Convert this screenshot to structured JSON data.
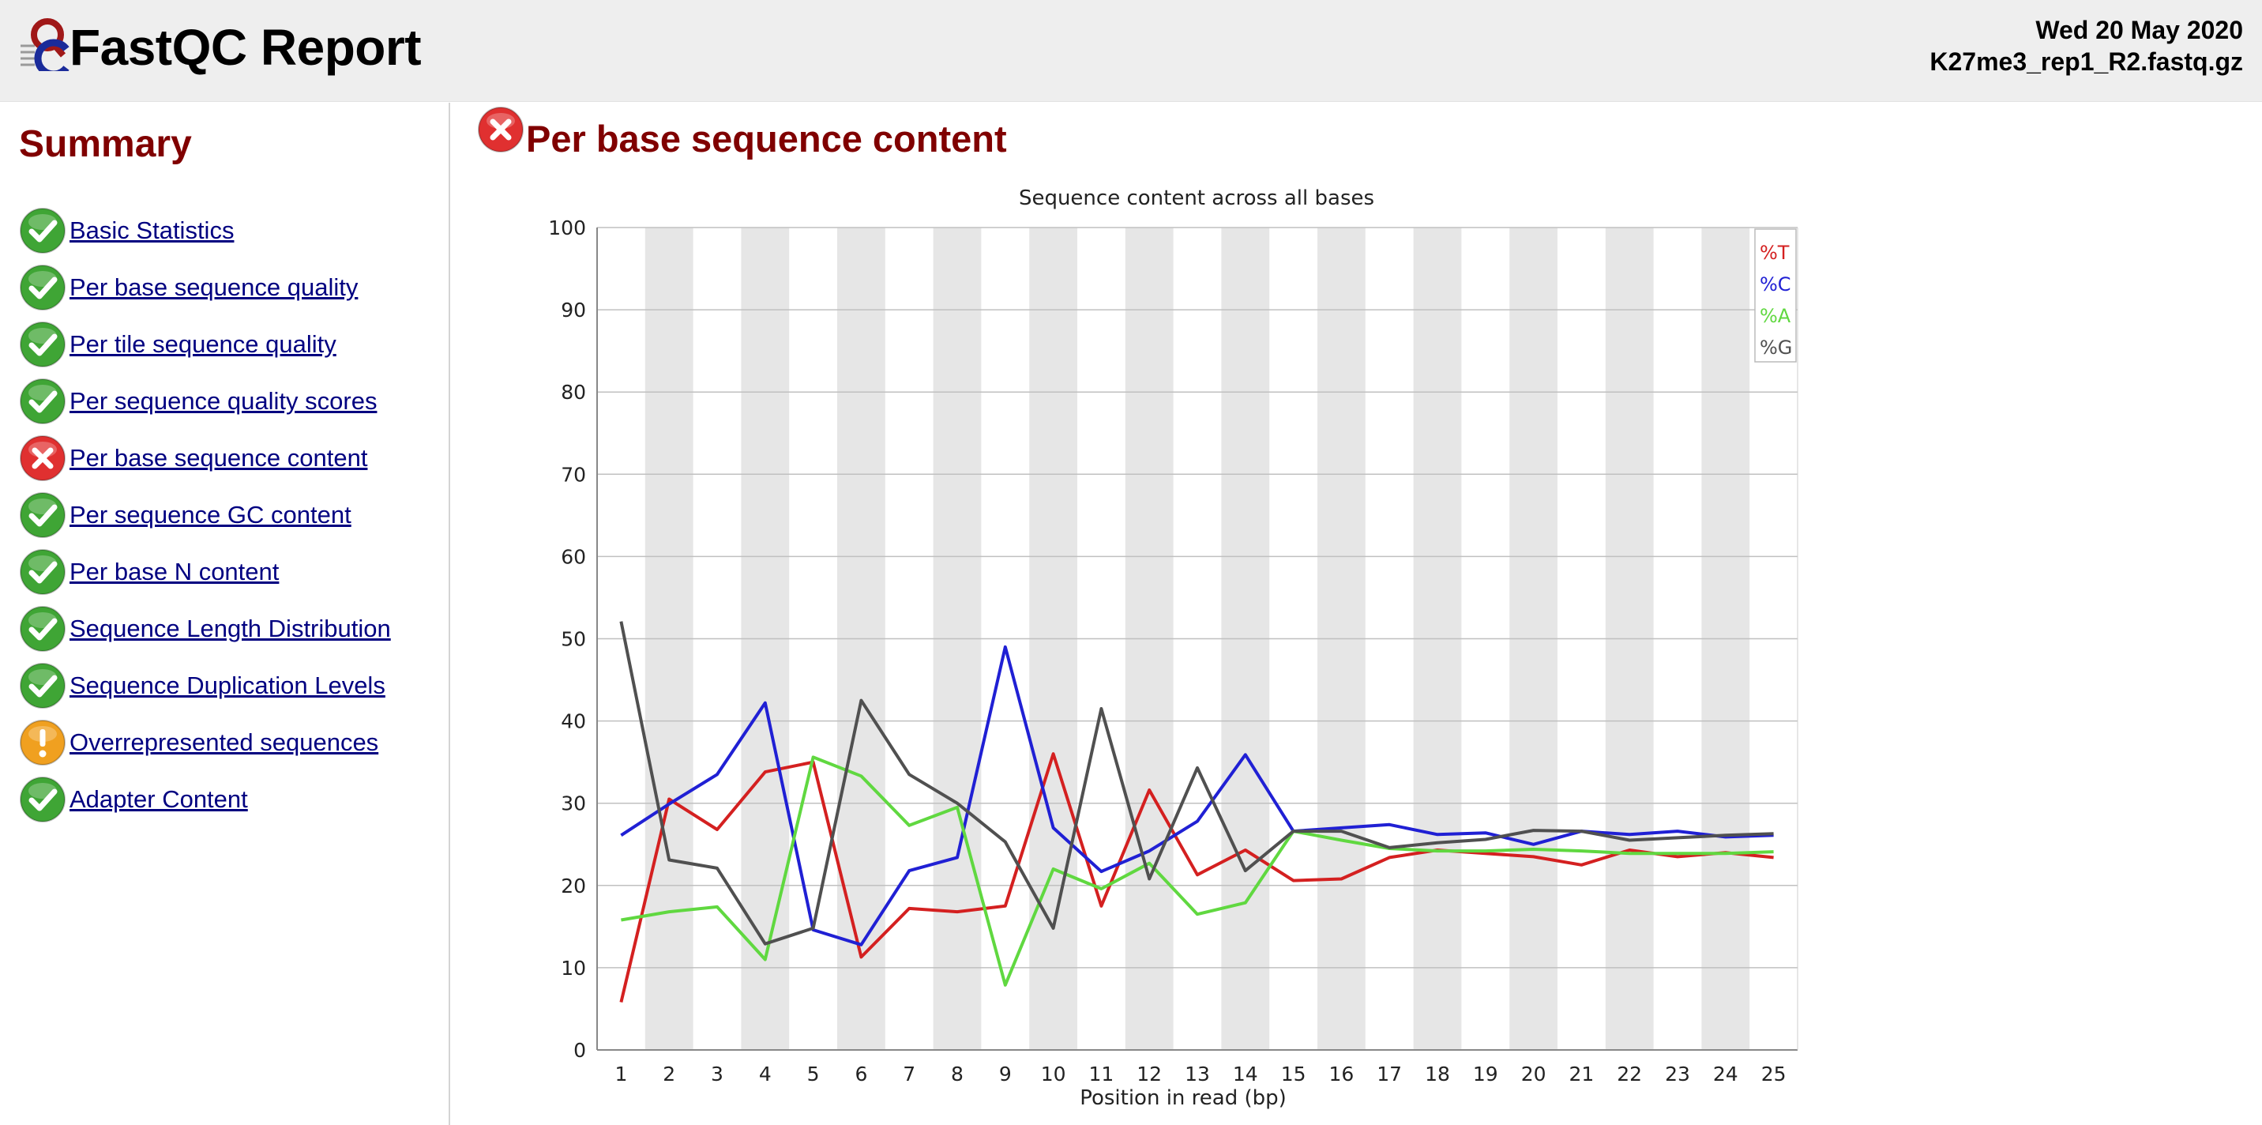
{
  "header": {
    "title": "FastQC Report",
    "date": "Wed 20 May 2020",
    "filename": "K27me3_rep1_R2.fastq.gz"
  },
  "sidebar": {
    "title": "Summary",
    "items": [
      {
        "label": "Basic Statistics",
        "status": "pass"
      },
      {
        "label": "Per base sequence quality",
        "status": "pass"
      },
      {
        "label": "Per tile sequence quality",
        "status": "pass"
      },
      {
        "label": "Per sequence quality scores",
        "status": "pass"
      },
      {
        "label": "Per base sequence content",
        "status": "fail"
      },
      {
        "label": "Per sequence GC content",
        "status": "pass"
      },
      {
        "label": "Per base N content",
        "status": "pass"
      },
      {
        "label": "Sequence Length Distribution",
        "status": "pass"
      },
      {
        "label": "Sequence Duplication Levels",
        "status": "pass"
      },
      {
        "label": "Overrepresented sequences",
        "status": "warn"
      },
      {
        "label": "Adapter Content",
        "status": "pass"
      }
    ]
  },
  "module": {
    "title": "Per base sequence content",
    "status": "fail"
  },
  "colors": {
    "summary_title": "#800000",
    "link": "#000080",
    "pass": "#3fa535",
    "fail": "#e03030",
    "warn": "#f0a020",
    "stripe": "#e6e6e6",
    "gridline": "#c0c0c0"
  },
  "chart_data": {
    "type": "line",
    "title": "Sequence content across all bases",
    "xlabel": "Position in read (bp)",
    "ylabel": "",
    "ylim": [
      0,
      100
    ],
    "yticks": [
      0,
      10,
      20,
      30,
      40,
      50,
      60,
      70,
      80,
      90,
      100
    ],
    "x": [
      "1",
      "2",
      "3",
      "4",
      "5",
      "6",
      "7",
      "8",
      "9",
      "10",
      "11",
      "12",
      "13",
      "14",
      "15",
      "16",
      "17",
      "18",
      "19",
      "20",
      "21",
      "22",
      "23",
      "24",
      "25"
    ],
    "legend_position": "top-right",
    "alternating_stripes": true,
    "series": [
      {
        "name": "%T",
        "color": "#d42020",
        "values": [
          5.8,
          30.5,
          26.8,
          33.8,
          35.0,
          11.3,
          17.2,
          16.8,
          17.5,
          36.0,
          17.5,
          31.6,
          21.3,
          24.3,
          20.6,
          20.8,
          23.4,
          24.3,
          23.9,
          23.5,
          22.5,
          24.3,
          23.5,
          24.0,
          23.4
        ]
      },
      {
        "name": "%C",
        "color": "#2020d4",
        "values": [
          26.1,
          29.9,
          33.5,
          42.2,
          14.6,
          12.8,
          21.8,
          23.4,
          49.0,
          27.0,
          21.7,
          24.2,
          27.8,
          35.9,
          26.6,
          27.0,
          27.4,
          26.2,
          26.4,
          25.0,
          26.6,
          26.2,
          26.6,
          25.9,
          26.1
        ]
      },
      {
        "name": "%A",
        "color": "#60d840",
        "values": [
          15.8,
          16.8,
          17.4,
          11.0,
          35.6,
          33.3,
          27.3,
          29.5,
          7.9,
          22.0,
          19.6,
          22.7,
          16.5,
          17.9,
          26.6,
          25.5,
          24.5,
          24.2,
          24.2,
          24.4,
          24.2,
          23.9,
          23.9,
          23.9,
          24.1
        ]
      },
      {
        "name": "%G",
        "color": "#505050",
        "values": [
          52.1,
          23.1,
          22.1,
          12.9,
          14.8,
          42.5,
          33.5,
          30.0,
          25.3,
          14.8,
          41.5,
          20.8,
          34.3,
          21.8,
          26.6,
          26.6,
          24.6,
          25.2,
          25.6,
          26.7,
          26.6,
          25.5,
          25.8,
          26.1,
          26.3
        ]
      }
    ]
  }
}
